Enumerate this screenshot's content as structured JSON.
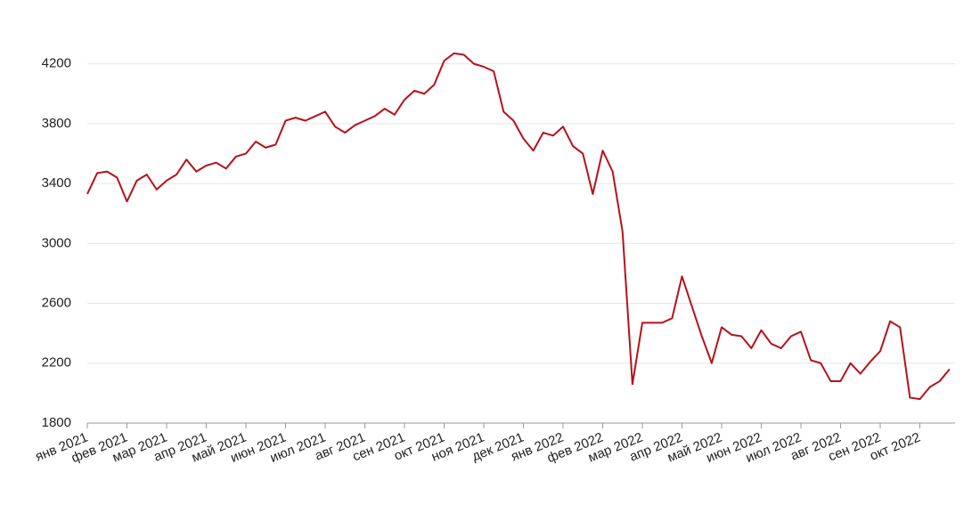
{
  "chart_data": {
    "type": "line",
    "categories": [
      "янв 2021",
      null,
      null,
      null,
      "фев 2021",
      null,
      null,
      null,
      "мар 2021",
      null,
      null,
      null,
      "апр 2021",
      null,
      null,
      null,
      "май 2021",
      null,
      null,
      null,
      "июн 2021",
      null,
      null,
      null,
      "июл 2021",
      null,
      null,
      null,
      "авг 2021",
      null,
      null,
      null,
      "сен 2021",
      null,
      null,
      null,
      "окт 2021",
      null,
      null,
      null,
      "ноя 2021",
      null,
      null,
      null,
      "дек 2021",
      null,
      null,
      null,
      "янв 2022",
      null,
      null,
      null,
      "фев 2022",
      null,
      null,
      null,
      "мар 2022",
      null,
      null,
      null,
      "апр 2022",
      null,
      null,
      null,
      "май 2022",
      null,
      null,
      null,
      "июн 2022",
      null,
      null,
      null,
      "июл 2022",
      null,
      null,
      null,
      "авг 2022",
      null,
      null,
      null,
      "сен 2022",
      null,
      null,
      null,
      "окт 2022",
      null,
      null,
      null
    ],
    "series": [
      {
        "color": "#b5121b",
        "values": [
          3330,
          3470,
          3480,
          3440,
          3280,
          3420,
          3460,
          3360,
          3420,
          3460,
          3560,
          3480,
          3520,
          3540,
          3500,
          3580,
          3600,
          3680,
          3640,
          3660,
          3820,
          3840,
          3820,
          3850,
          3880,
          3780,
          3740,
          3790,
          3820,
          3850,
          3900,
          3860,
          3960,
          4020,
          4000,
          4060,
          4220,
          4270,
          4260,
          4200,
          4180,
          4150,
          3880,
          3820,
          3700,
          3620,
          3740,
          3720,
          3780,
          3650,
          3600,
          3330,
          3620,
          3480,
          3080,
          2060,
          2470,
          2470,
          2470,
          2500,
          2780,
          2580,
          2380,
          2200,
          2440,
          2390,
          2380,
          2300,
          2420,
          2330,
          2300,
          2380,
          2410,
          2220,
          2200,
          2080,
          2080,
          2200,
          2130,
          2210,
          2280,
          2480,
          2440,
          1970,
          1960,
          2040,
          2080,
          2160
        ]
      }
    ],
    "ylim": [
      1800,
      4400
    ],
    "yticks": [
      1800,
      2200,
      2600,
      3000,
      3400,
      3800,
      4200
    ],
    "grid": true
  }
}
